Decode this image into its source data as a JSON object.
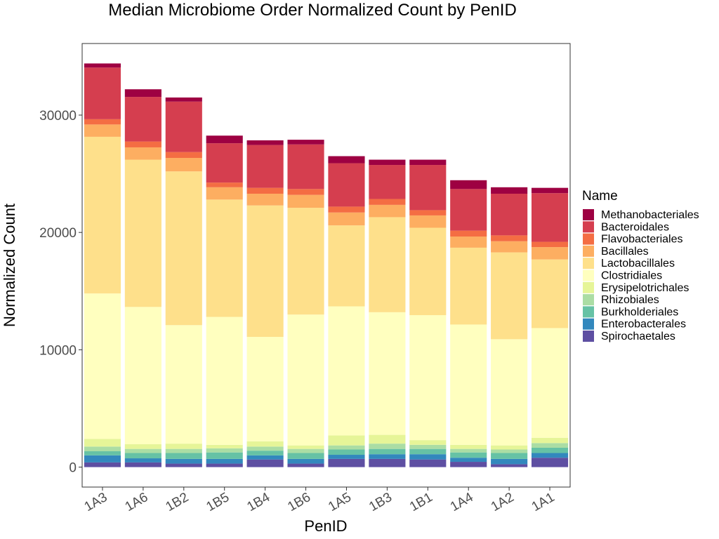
{
  "chart_data": {
    "type": "bar",
    "stacked": true,
    "title": "Median Microbiome Order Normalized Count by PenID",
    "xlabel": "PenID",
    "ylabel": "Normalized Count",
    "ylim": [
      -1700,
      36100
    ],
    "yticks": [
      0,
      10000,
      20000,
      30000
    ],
    "grid": false,
    "legend": {
      "title": "Name",
      "position": "right"
    },
    "categories": [
      "1A3",
      "1A6",
      "1B2",
      "1B5",
      "1B4",
      "1B6",
      "1A5",
      "1B3",
      "1B1",
      "1A4",
      "1A2",
      "1A1"
    ],
    "series": [
      {
        "name": "Spirochaetales",
        "color": "#5E4FA2",
        "values": [
          400,
          400,
          300,
          300,
          650,
          300,
          700,
          700,
          650,
          450,
          250,
          800
        ]
      },
      {
        "name": "Enterobacterales",
        "color": "#3288BD",
        "values": [
          600,
          350,
          400,
          400,
          350,
          400,
          350,
          400,
          450,
          350,
          450,
          400
        ]
      },
      {
        "name": "Burkholderiales",
        "color": "#66C2A5",
        "values": [
          350,
          450,
          500,
          550,
          400,
          500,
          450,
          450,
          450,
          450,
          500,
          450
        ]
      },
      {
        "name": "Rhizobiales",
        "color": "#ABDDA4",
        "values": [
          400,
          350,
          350,
          350,
          350,
          350,
          350,
          450,
          350,
          300,
          300,
          400
        ]
      },
      {
        "name": "Erysipelotrichales",
        "color": "#E6F598",
        "values": [
          650,
          400,
          450,
          300,
          450,
          300,
          850,
          750,
          400,
          350,
          350,
          450
        ]
      },
      {
        "name": "Clostridiales",
        "color": "#FFFFBF",
        "values": [
          12400,
          11700,
          10100,
          10900,
          8900,
          11150,
          11000,
          10450,
          10650,
          10250,
          9050,
          9350
        ]
      },
      {
        "name": "Lactobacillales",
        "color": "#FEE08B",
        "values": [
          13350,
          12550,
          13100,
          10000,
          11200,
          9100,
          6900,
          8100,
          7450,
          6550,
          7400,
          5850
        ]
      },
      {
        "name": "Bacillales",
        "color": "#FDAE61",
        "values": [
          1050,
          1050,
          1150,
          1050,
          1000,
          1100,
          1100,
          1050,
          1050,
          950,
          950,
          1050
        ]
      },
      {
        "name": "Flavobacteriales",
        "color": "#F46D43",
        "values": [
          450,
          500,
          500,
          400,
          500,
          500,
          500,
          500,
          450,
          500,
          500,
          450
        ]
      },
      {
        "name": "Bacteroidales",
        "color": "#D53E4F",
        "values": [
          4400,
          3800,
          4300,
          3350,
          3650,
          3800,
          3700,
          2900,
          3850,
          3550,
          3550,
          4150
        ]
      },
      {
        "name": "Methanobacteriales",
        "color": "#9E0142",
        "values": [
          350,
          650,
          350,
          650,
          400,
          400,
          600,
          450,
          450,
          750,
          550,
          450
        ]
      }
    ]
  }
}
